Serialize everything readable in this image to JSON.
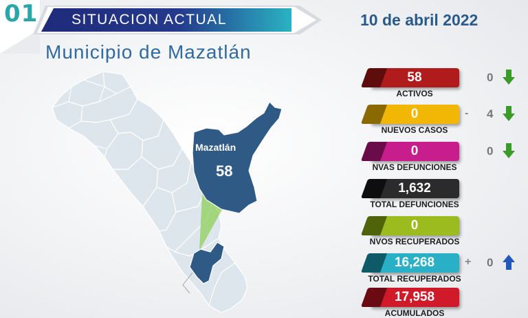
{
  "header": {
    "number": "01",
    "title": "SITUACION ACTUAL",
    "subtitle": "Municipio de Mazatlán",
    "date": "10 de abril 2022"
  },
  "map": {
    "highlight_label": "Mazatlán",
    "highlight_value": "58"
  },
  "stats": [
    {
      "label": "ACTIVOS",
      "value": "58",
      "color": "#b01c1c",
      "dark": "#5e0c0c",
      "sign": "",
      "delta": "0",
      "arrow": "down-arrow-icon"
    },
    {
      "label": "NUEVOS CASOS",
      "value": "0",
      "color": "#f2b705",
      "dark": "#8a6a00",
      "sign": "-",
      "delta": "4",
      "arrow": "down-arrow-icon"
    },
    {
      "label": "NVAS DEFUNCIONES",
      "value": "0",
      "color": "#c81d8c",
      "dark": "#6a0c49",
      "sign": "",
      "delta": "0",
      "arrow": "down-arrow-icon"
    },
    {
      "label": "TOTAL DEFUNCIONES",
      "value": "1,632",
      "color": "#2b2b2b",
      "dark": "#0e0e0e",
      "sign": "",
      "delta": "",
      "arrow": ""
    },
    {
      "label": "NVOS RECUPERADOS",
      "value": "0",
      "color": "#9cbb1f",
      "dark": "#4f6408",
      "sign": "",
      "delta": "",
      "arrow": ""
    },
    {
      "label": "TOTAL RECUPERADOS",
      "value": "16,268",
      "color": "#2ab0c6",
      "dark": "#0e5a68",
      "sign": "+",
      "delta": "0",
      "arrow": "up-arrow-icon"
    },
    {
      "label": "ACUMULADOS",
      "value": "17,958",
      "color": "#d01a2a",
      "dark": "#6a0a12",
      "sign": "",
      "delta": "",
      "arrow": ""
    }
  ]
}
